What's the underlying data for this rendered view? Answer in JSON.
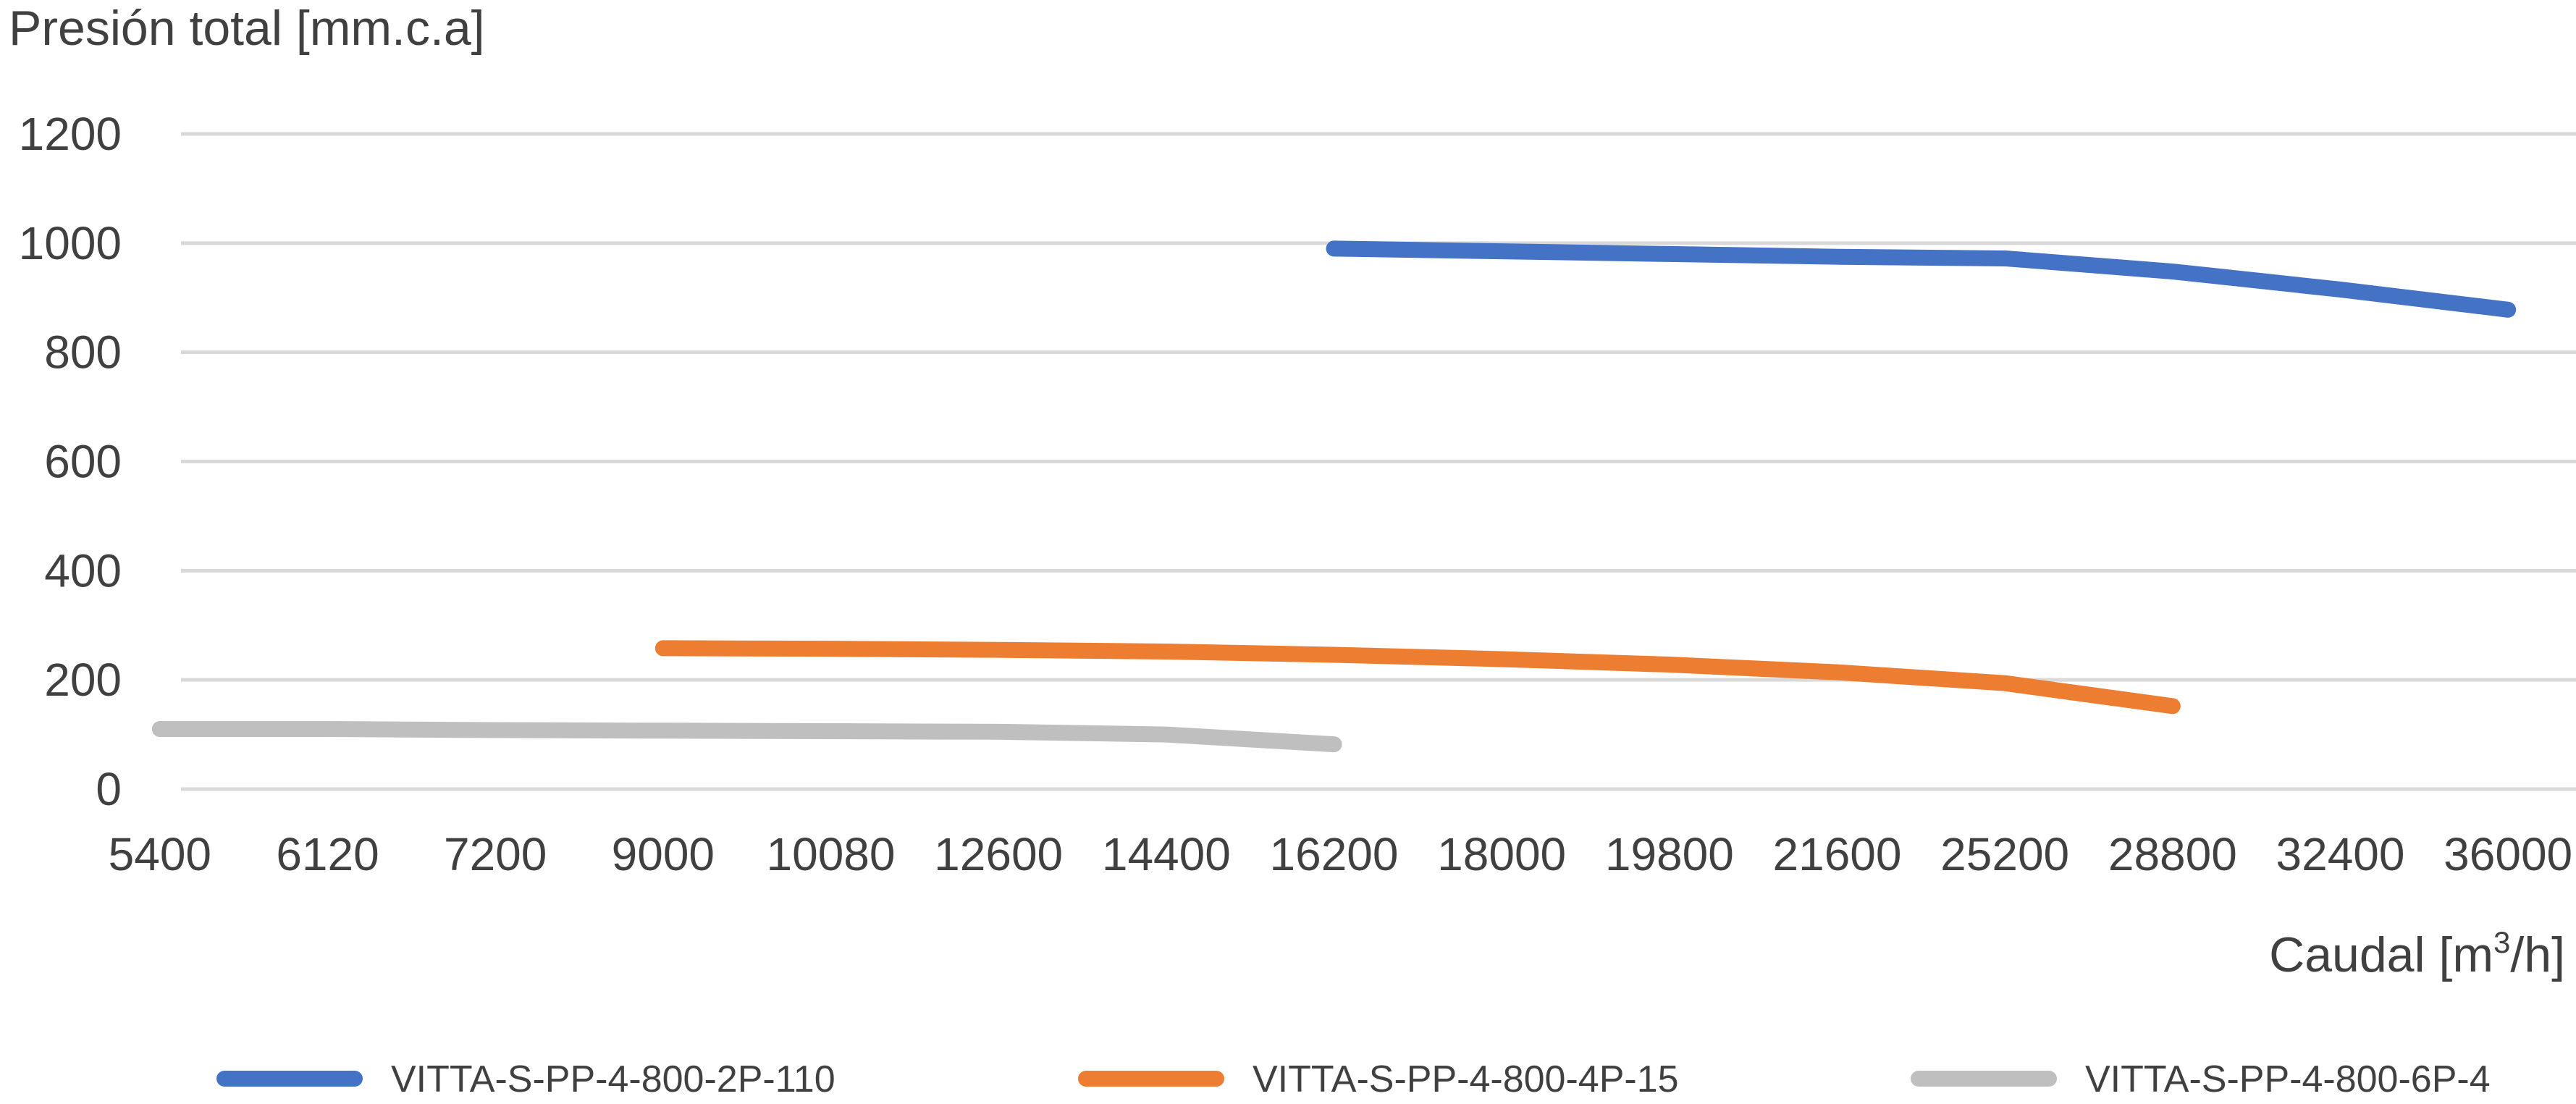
{
  "chart_data": {
    "type": "line",
    "ylabel": "Presión total [mm.c.a]",
    "xlabel_prefix": "Caudal [m",
    "xlabel_sup": "3",
    "xlabel_suffix": "/h]",
    "categories": [
      "5400",
      "6120",
      "7200",
      "9000",
      "10080",
      "12600",
      "14400",
      "16200",
      "18000",
      "19800",
      "21600",
      "25200",
      "28800",
      "32400",
      "36000"
    ],
    "yticks": [
      "0",
      "200",
      "400",
      "600",
      "800",
      "1000",
      "1200"
    ],
    "ylim": [
      0,
      1200
    ],
    "grid": true,
    "legend_position": "bottom",
    "series": [
      {
        "name": "VITTA-S-PP-4-800-2P-110",
        "color": "#4472c4",
        "values": [
          null,
          null,
          null,
          null,
          null,
          null,
          null,
          990,
          985,
          980,
          975,
          972,
          948,
          915,
          878
        ]
      },
      {
        "name": "VITTA-S-PP-4-800-4P-15",
        "color": "#ed7d31",
        "values": [
          null,
          null,
          null,
          258,
          257,
          255,
          252,
          246,
          238,
          228,
          214,
          194,
          152,
          null,
          null
        ]
      },
      {
        "name": "VITTA-S-PP-4-800-6P-4",
        "color": "#bfbfbf",
        "values": [
          110,
          110,
          108,
          107,
          106,
          105,
          100,
          82,
          null,
          null,
          null,
          null,
          null,
          null,
          null
        ]
      }
    ]
  }
}
